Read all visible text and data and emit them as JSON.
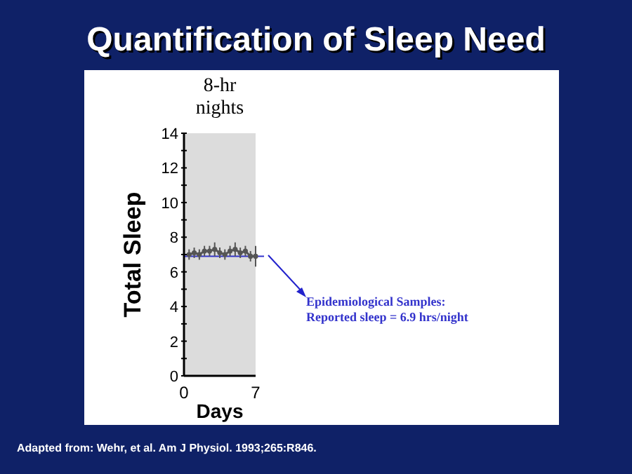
{
  "chart_data": {
    "type": "line",
    "title": "Quantification of Sleep Need",
    "xlabel": "Days",
    "ylabel": "Total Sleep",
    "x": [
      0.5,
      1,
      1.5,
      2,
      2.5,
      3,
      3.5,
      4,
      4.5,
      5,
      5.5,
      6,
      6.5,
      7
    ],
    "series": [
      {
        "color": "#555555",
        "values": [
          7.0,
          7.1,
          7.0,
          7.2,
          7.2,
          7.3,
          7.1,
          7.0,
          7.2,
          7.3,
          7.1,
          7.2,
          6.9,
          6.9
        ],
        "errors": [
          0.3,
          0.3,
          0.3,
          0.3,
          0.3,
          0.4,
          0.3,
          0.3,
          0.3,
          0.4,
          0.3,
          0.3,
          0.3,
          0.6
        ]
      }
    ],
    "marker": "circle",
    "line_style": "solid",
    "xlim": [
      0,
      7
    ],
    "xticks": [
      0,
      7
    ],
    "ylim": [
      0,
      14
    ],
    "yticks": [
      0,
      {
        "value": 1,
        "label": null
      },
      2,
      {
        "value": 3,
        "label": null
      },
      4,
      {
        "value": 5,
        "label": null
      },
      6,
      {
        "value": 7,
        "label": null
      },
      8,
      {
        "value": 9,
        "label": null
      },
      10,
      {
        "value": 11,
        "label": null
      },
      12,
      {
        "value": 13,
        "label": null
      },
      14
    ],
    "bands": [
      {
        "axis": "x",
        "from": 0,
        "to": 7,
        "label": "8-hr\nnights",
        "color": "#dcdcdc"
      }
    ],
    "ref_lines": [
      {
        "axis": "y",
        "value": 6.9,
        "label": "Epidemiological Samples:\nReported sleep = 6.9 hrs/night",
        "color": "#3333cc"
      }
    ],
    "annotations": [
      "Adapted from: Wehr, et al. Am J Physiol. 1993;265:R846."
    ],
    "grid": false,
    "legend": false
  }
}
